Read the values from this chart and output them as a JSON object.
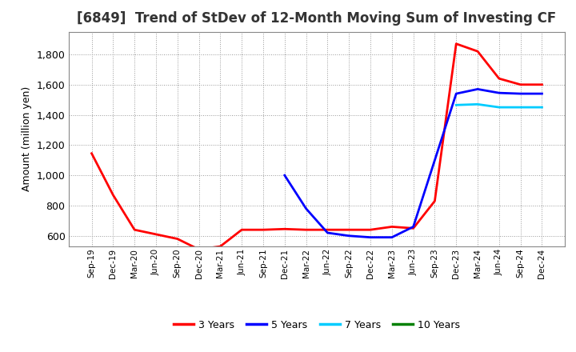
{
  "title": "[6849]  Trend of StDev of 12-Month Moving Sum of Investing CF",
  "ylabel": "Amount (million yen)",
  "background_color": "#ffffff",
  "grid_color": "#aaaaaa",
  "title_fontsize": 12,
  "tick_labels": [
    "Sep-19",
    "Dec-19",
    "Mar-20",
    "Jun-20",
    "Sep-20",
    "Dec-20",
    "Mar-21",
    "Jun-21",
    "Sep-21",
    "Dec-21",
    "Mar-22",
    "Jun-22",
    "Sep-22",
    "Dec-22",
    "Mar-23",
    "Jun-23",
    "Sep-23",
    "Dec-23",
    "Mar-24",
    "Jun-24",
    "Sep-24",
    "Dec-24"
  ],
  "series": {
    "3 Years": {
      "color": "#ff0000",
      "data": [
        1145,
        870,
        640,
        610,
        580,
        510,
        530,
        640,
        640,
        645,
        640,
        640,
        640,
        640,
        660,
        650,
        830,
        1870,
        1820,
        1640,
        1600,
        1600
      ]
    },
    "5 Years": {
      "color": "#0000ff",
      "data": [
        null,
        null,
        null,
        null,
        null,
        null,
        null,
        null,
        null,
        1000,
        780,
        620,
        600,
        590,
        590,
        660,
        1100,
        1540,
        1570,
        1545,
        1540,
        1540
      ]
    },
    "7 Years": {
      "color": "#00ccff",
      "data": [
        null,
        null,
        null,
        null,
        null,
        null,
        null,
        null,
        null,
        null,
        null,
        null,
        null,
        null,
        null,
        null,
        null,
        1465,
        1470,
        1450,
        1450,
        1450
      ]
    },
    "10 Years": {
      "color": "#008000",
      "data": [
        null,
        null,
        null,
        null,
        null,
        null,
        null,
        null,
        null,
        null,
        null,
        null,
        null,
        null,
        null,
        null,
        null,
        null,
        null,
        null,
        null,
        null
      ]
    }
  },
  "ylim": [
    530,
    1950
  ],
  "yticks": [
    600,
    800,
    1000,
    1200,
    1400,
    1600,
    1800
  ],
  "legend_labels": [
    "3 Years",
    "5 Years",
    "7 Years",
    "10 Years"
  ],
  "legend_colors": [
    "#ff0000",
    "#0000ff",
    "#00ccff",
    "#008000"
  ]
}
